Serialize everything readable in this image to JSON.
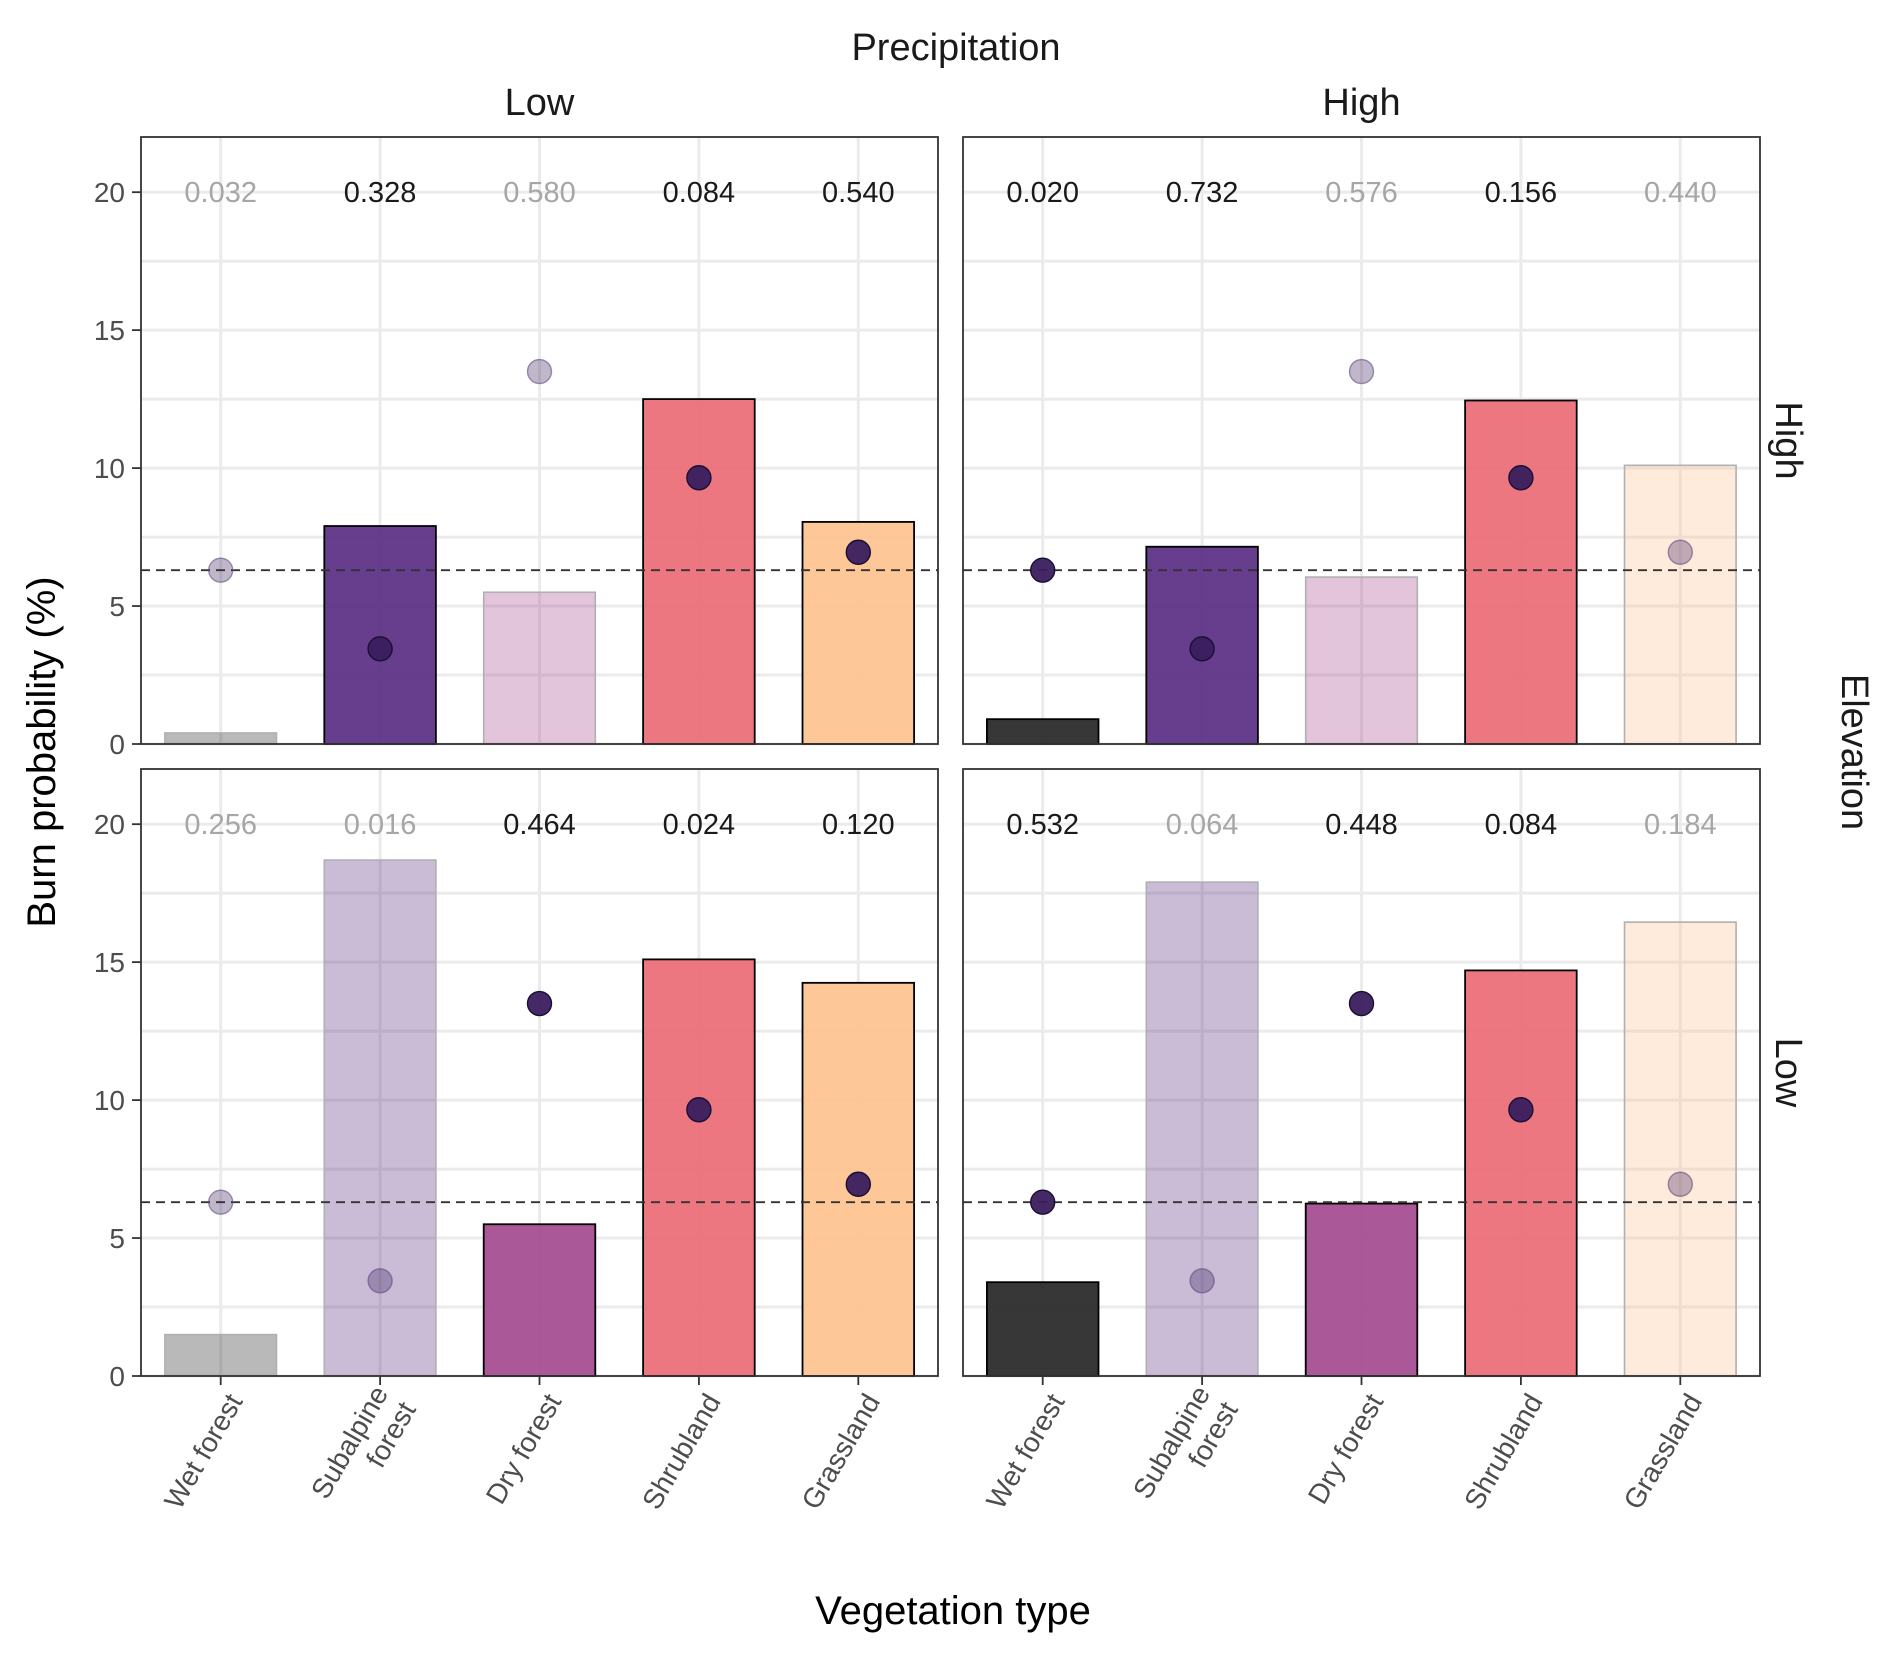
{
  "chart_data": {
    "type": "bar",
    "xlabel": "Vegetation type",
    "ylabel": "Burn probability (%)",
    "column_facet_title": "Precipitation",
    "row_facet_title": "Elevation",
    "column_facets": [
      "Low",
      "High"
    ],
    "row_facets": [
      "High",
      "Low"
    ],
    "categories": [
      "Wet forest",
      "Subalpine forest",
      "Dry forest",
      "Shrubland",
      "Grassland"
    ],
    "ylim": [
      0,
      22
    ],
    "y_ticks": [
      "0",
      "5",
      "10",
      "15",
      "20"
    ],
    "reference_line_y": 6.3,
    "grid": true,
    "category_colors": [
      "#262626",
      "#5a2c83",
      "#a44a8f",
      "#ec6b76",
      "#fec28f"
    ],
    "point_color": "#3a1e5e",
    "panels": [
      {
        "row": "High",
        "column": "Low",
        "bar_values": [
          0.4,
          7.9,
          5.5,
          12.5,
          8.05
        ],
        "point_values": [
          6.3,
          3.45,
          13.5,
          9.65,
          6.95
        ],
        "p_labels": [
          "0.032",
          "0.328",
          "0.580",
          "0.084",
          "0.540"
        ],
        "significant": [
          false,
          true,
          false,
          true,
          true
        ]
      },
      {
        "row": "High",
        "column": "High",
        "bar_values": [
          0.9,
          7.15,
          6.05,
          12.45,
          10.1
        ],
        "point_values": [
          6.3,
          3.45,
          13.5,
          9.65,
          6.95
        ],
        "p_labels": [
          "0.020",
          "0.732",
          "0.576",
          "0.156",
          "0.440"
        ],
        "significant": [
          true,
          true,
          false,
          true,
          false
        ]
      },
      {
        "row": "Low",
        "column": "Low",
        "bar_values": [
          1.5,
          18.7,
          5.5,
          15.1,
          14.25
        ],
        "point_values": [
          6.3,
          3.45,
          13.5,
          9.65,
          6.95
        ],
        "p_labels": [
          "0.256",
          "0.016",
          "0.464",
          "0.024",
          "0.120"
        ],
        "significant": [
          false,
          false,
          true,
          true,
          true
        ]
      },
      {
        "row": "Low",
        "column": "High",
        "bar_values": [
          3.4,
          17.9,
          6.25,
          14.7,
          16.45
        ],
        "point_values": [
          6.3,
          3.45,
          13.5,
          9.65,
          6.95
        ],
        "p_labels": [
          "0.532",
          "0.064",
          "0.448",
          "0.084",
          "0.184"
        ],
        "significant": [
          true,
          false,
          true,
          true,
          false
        ]
      }
    ]
  }
}
